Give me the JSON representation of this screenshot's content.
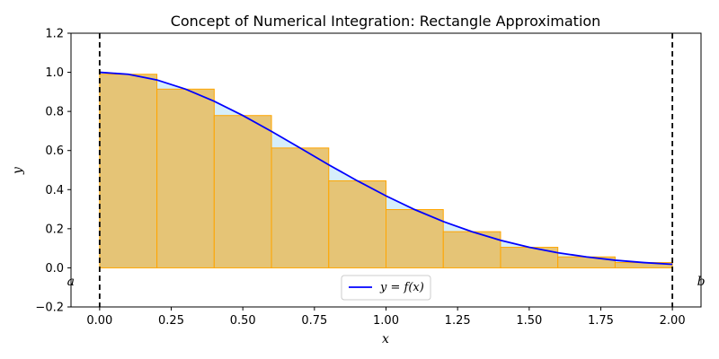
{
  "chart_data": {
    "type": "bar",
    "title": "Concept of Numerical Integration: Rectangle Approximation",
    "xlabel": "x",
    "ylabel": "y",
    "xlim": [
      -0.1,
      2.1
    ],
    "ylim": [
      -0.2,
      1.2
    ],
    "xticks": [
      "0.00",
      "0.25",
      "0.50",
      "0.75",
      "1.00",
      "1.25",
      "1.50",
      "1.75",
      "2.00"
    ],
    "yticks": [
      "−0.2",
      "0.0",
      "0.2",
      "0.4",
      "0.6",
      "0.8",
      "1.0",
      "1.2"
    ],
    "grid": false,
    "legend_position": "bottom-center",
    "series": [
      {
        "name": "y = f(x)",
        "kind": "line",
        "color": "#0000ff",
        "x": [
          0.0,
          0.1,
          0.2,
          0.3,
          0.4,
          0.5,
          0.6,
          0.7,
          0.8,
          0.9,
          1.0,
          1.1,
          1.2,
          1.3,
          1.4,
          1.5,
          1.6,
          1.7,
          1.8,
          1.9,
          2.0
        ],
        "y": [
          1.0,
          0.99,
          0.961,
          0.914,
          0.852,
          0.779,
          0.698,
          0.613,
          0.527,
          0.445,
          0.368,
          0.298,
          0.237,
          0.185,
          0.141,
          0.105,
          0.077,
          0.056,
          0.039,
          0.027,
          0.018
        ]
      },
      {
        "kind": "rectangles",
        "fill": "#e6c06a",
        "edge": "#ffa500",
        "bin_width": 0.2,
        "x_left": [
          0.0,
          0.2,
          0.4,
          0.6,
          0.8,
          1.0,
          1.2,
          1.4,
          1.6,
          1.8
        ],
        "height": [
          0.99,
          0.914,
          0.779,
          0.613,
          0.445,
          0.298,
          0.185,
          0.105,
          0.056,
          0.027
        ]
      }
    ],
    "area_fill_color": "#d6eefa",
    "bounds": [
      {
        "x": 0.0,
        "label": "a"
      },
      {
        "x": 2.0,
        "label": "b"
      }
    ]
  }
}
